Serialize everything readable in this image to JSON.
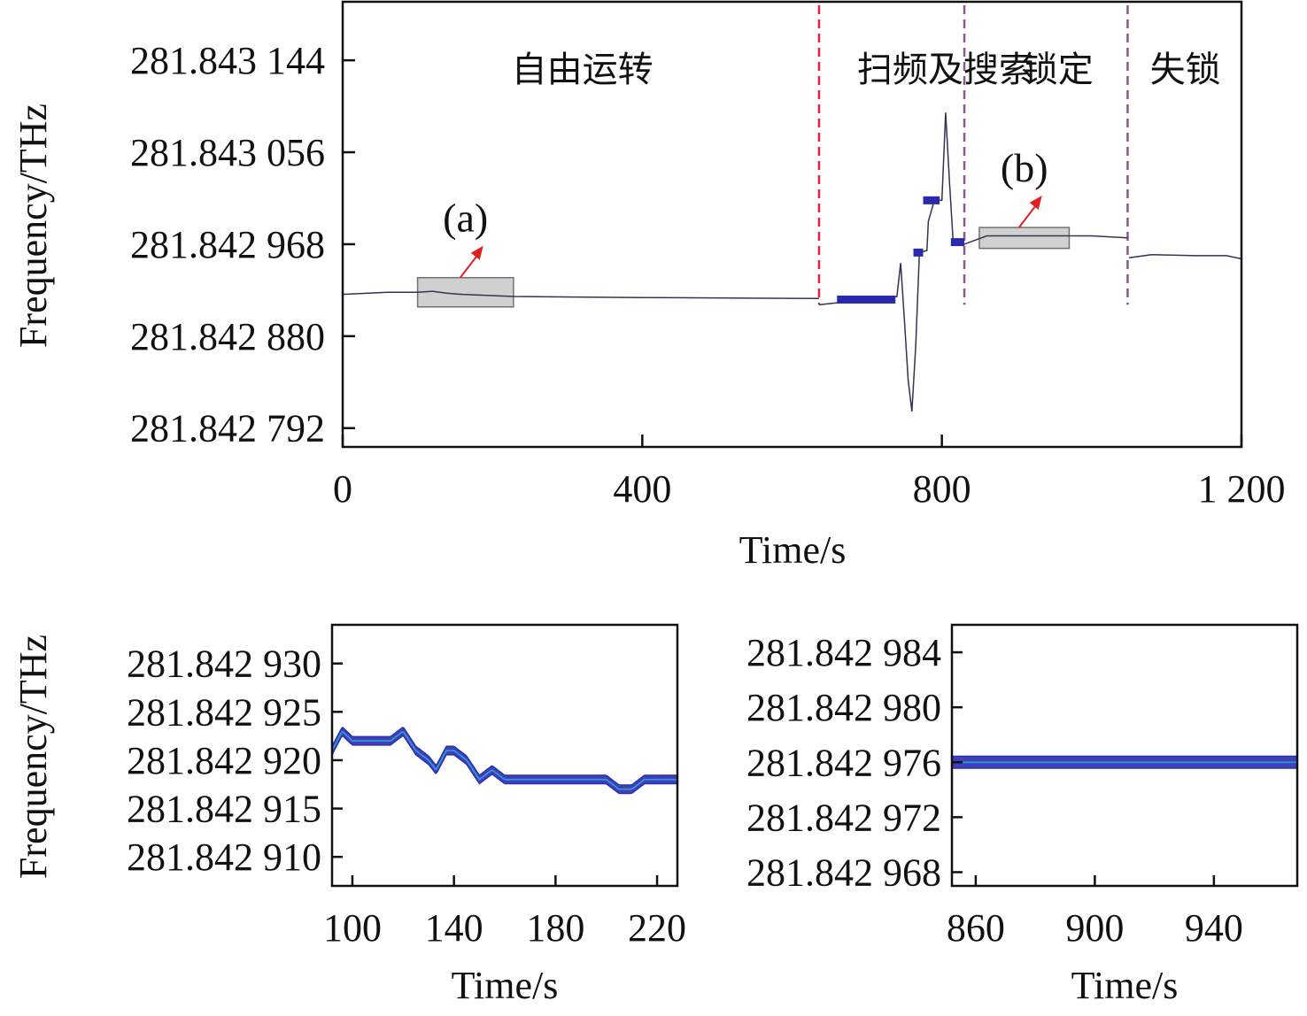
{
  "colors": {
    "trace": "#2a2ab0",
    "trace_inner": "#2aa0d8",
    "boundary_red": "#d42a3a",
    "boundary_purple": "#8a5a8a",
    "zoom_box_fill": "#d0d0d0",
    "zoom_box_stroke": "#707070",
    "arrow": "#e02020"
  },
  "chart_data": [
    {
      "id": "main",
      "type": "line",
      "title": "",
      "xlabel": "Time/s",
      "ylabel": "Frequency/THz",
      "xlim": [
        0,
        1200
      ],
      "ylim": [
        281.842774,
        281.8432
      ],
      "x_ticks": [
        {
          "value": 0,
          "label": "0"
        },
        {
          "value": 400,
          "label": "400"
        },
        {
          "value": 800,
          "label": "800"
        },
        {
          "value": 1200,
          "label": "1 200"
        }
      ],
      "y_ticks": [
        {
          "value": 281.843144,
          "label": "281.843 144"
        },
        {
          "value": 281.843056,
          "label": "281.843 056"
        },
        {
          "value": 281.842968,
          "label": "281.842 968"
        },
        {
          "value": 281.84288,
          "label": "281.842 880"
        },
        {
          "value": 281.842792,
          "label": "281.842 792"
        }
      ],
      "regions": [
        {
          "label": "自由运转",
          "x_center": 320
        },
        {
          "label": "扫频及搜索",
          "x_center": 805
        },
        {
          "label": "锁定",
          "x_center": 955
        },
        {
          "label": "失锁",
          "x_center": 1125
        }
      ],
      "boundaries": [
        {
          "x": 636,
          "color": "red"
        },
        {
          "x": 830,
          "color": "purple"
        },
        {
          "x": 1048,
          "color": "purple"
        }
      ],
      "zoom_boxes": [
        {
          "label": "(a)",
          "x": [
            100,
            228
          ],
          "y": [
            281.842908,
            281.842936
          ]
        },
        {
          "label": "(b)",
          "x": [
            850,
            970
          ],
          "y": [
            281.842964,
            281.842984
          ]
        }
      ],
      "series": [
        {
          "segments": [
            [
              [
                0,
                281.84292
              ],
              [
                60,
                281.842922
              ],
              [
                100,
                281.842922
              ],
              [
                120,
                281.842923
              ],
              [
                140,
                281.842921
              ],
              [
                160,
                281.84292
              ],
              [
                228,
                281.842918
              ],
              [
                400,
                281.842917
              ],
              [
                636,
                281.842916
              ]
            ],
            [
              [
                636,
                281.84291
              ],
              [
                660,
                281.842912
              ],
              [
                680,
                281.842915
              ],
              [
                740,
                281.842918
              ],
              [
                745,
                281.84295
              ],
              [
                750,
                281.842895
              ],
              [
                755,
                281.842838
              ],
              [
                760,
                281.842808
              ],
              [
                765,
                281.84287
              ],
              [
                770,
                281.84296
              ],
              [
                780,
                281.842962
              ],
              [
                782,
                281.84299
              ],
              [
                790,
                281.84301
              ],
              [
                800,
                281.84301
              ],
              [
                805,
                281.843094
              ],
              [
                810,
                281.84303
              ],
              [
                815,
                281.84297
              ],
              [
                830,
                281.842968
              ],
              [
                860,
                281.842976
              ],
              [
                1000,
                281.842976
              ],
              [
                1048,
                281.842974
              ]
            ],
            [
              [
                1050,
                281.842955
              ],
              [
                1080,
                281.842958
              ],
              [
                1140,
                281.842957
              ],
              [
                1180,
                281.842957
              ],
              [
                1200,
                281.842954
              ]
            ]
          ],
          "thick_segments": [
            {
              "x": [
                660,
                738
              ],
              "y": 281.842915
            },
            {
              "x": [
                762,
                775
              ],
              "y": 281.84296
            },
            {
              "x": [
                775,
                797
              ],
              "y": 281.84301
            },
            {
              "x": [
                812,
                830
              ],
              "y": 281.84297
            }
          ]
        }
      ]
    },
    {
      "id": "inset-a",
      "type": "line",
      "title": "",
      "xlabel": "Time/s",
      "ylabel": "Frequency/THz",
      "xlim": [
        92,
        228
      ],
      "ylim": [
        281.842907,
        281.842934
      ],
      "x_ticks": [
        {
          "value": 100,
          "label": "100"
        },
        {
          "value": 140,
          "label": "140"
        },
        {
          "value": 180,
          "label": "180"
        },
        {
          "value": 220,
          "label": "220"
        }
      ],
      "y_ticks": [
        {
          "value": 281.84293,
          "label": "281.842 930"
        },
        {
          "value": 281.842925,
          "label": "281.842 925"
        },
        {
          "value": 281.84292,
          "label": "281.842 920"
        },
        {
          "value": 281.842915,
          "label": "281.842 915"
        },
        {
          "value": 281.84291,
          "label": "281.842 910"
        }
      ],
      "series": [
        {
          "x": [
            92,
            96,
            100,
            105,
            110,
            115,
            120,
            125,
            130,
            133,
            137,
            140,
            145,
            150,
            155,
            160,
            170,
            180,
            190,
            200,
            205,
            210,
            215,
            220,
            228
          ],
          "y": [
            281.842921,
            281.842923,
            281.842922,
            281.842922,
            281.842922,
            281.842922,
            281.842923,
            281.842921,
            281.84292,
            281.842919,
            281.842921,
            281.842921,
            281.84292,
            281.842918,
            281.842919,
            281.842918,
            281.842918,
            281.842918,
            281.842918,
            281.842918,
            281.842917,
            281.842917,
            281.842918,
            281.842918,
            281.842918
          ]
        }
      ]
    },
    {
      "id": "inset-b",
      "type": "line",
      "title": "",
      "xlabel": "Time/s",
      "ylabel": "",
      "xlim": [
        852,
        968
      ],
      "ylim": [
        281.842967,
        281.842986
      ],
      "x_ticks": [
        {
          "value": 860,
          "label": "860"
        },
        {
          "value": 900,
          "label": "900"
        },
        {
          "value": 940,
          "label": "940"
        }
      ],
      "y_ticks": [
        {
          "value": 281.842984,
          "label": "281.842 984"
        },
        {
          "value": 281.84298,
          "label": "281.842 980"
        },
        {
          "value": 281.842976,
          "label": "281.842 976"
        },
        {
          "value": 281.842972,
          "label": "281.842 972"
        },
        {
          "value": 281.842968,
          "label": "281.842 968"
        }
      ],
      "series": [
        {
          "x": [
            852,
            968
          ],
          "y": [
            281.842976,
            281.842976
          ]
        }
      ]
    }
  ]
}
